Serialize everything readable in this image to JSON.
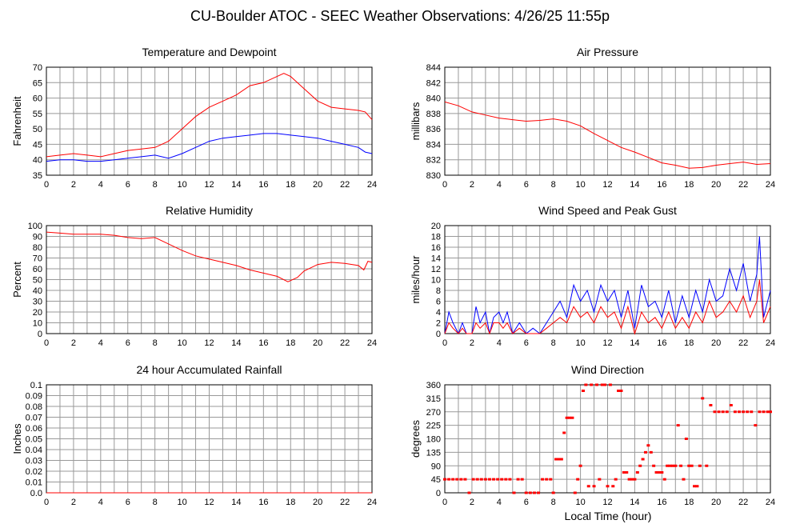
{
  "page": {
    "title": "CU-Boulder ATOC - SEEC Weather Observations: 4/26/25 11:55p",
    "x_axis_label": "Local Time (hour)"
  },
  "colors": {
    "red": "#ff0000",
    "blue": "#0000ff",
    "grid": "#999999"
  },
  "chart_data": [
    {
      "id": "temp",
      "type": "line",
      "title": "Temperature and Dewpoint",
      "xlabel": "",
      "ylabel": "Fahrenheit",
      "xlim": [
        0,
        24
      ],
      "ylim": [
        35,
        70
      ],
      "yticks": [
        35,
        40,
        45,
        50,
        55,
        60,
        65,
        70
      ],
      "xticks": [
        0,
        2,
        4,
        6,
        8,
        10,
        12,
        14,
        16,
        18,
        20,
        22,
        24
      ],
      "series": [
        {
          "color": "#ff0000",
          "x": [
            0,
            1,
            2,
            3,
            4,
            5,
            6,
            7,
            8,
            9,
            10,
            11,
            12,
            13,
            14,
            15,
            16,
            17,
            17.5,
            18,
            18.5,
            19,
            20,
            21,
            22,
            23,
            23.5,
            24
          ],
          "y": [
            41,
            41.5,
            42,
            41.5,
            41,
            42,
            43,
            43.5,
            44,
            46,
            50,
            54,
            57,
            59,
            61,
            64,
            65,
            67,
            68,
            67,
            65,
            63,
            59,
            57,
            56.5,
            56,
            55.5,
            53
          ]
        },
        {
          "color": "#0000ff",
          "x": [
            0,
            1,
            2,
            3,
            4,
            5,
            6,
            7,
            8,
            9,
            10,
            11,
            12,
            13,
            14,
            15,
            16,
            17,
            18,
            19,
            20,
            21,
            22,
            23,
            23.5,
            24
          ],
          "y": [
            39.5,
            40,
            40,
            39.5,
            39.5,
            40,
            40.5,
            41,
            41.5,
            40.5,
            42,
            44,
            46,
            47,
            47.5,
            48,
            48.5,
            48.5,
            48,
            47.5,
            47,
            46,
            45,
            44,
            42.5,
            42
          ]
        }
      ]
    },
    {
      "id": "pressure",
      "type": "line",
      "title": "Air Pressure",
      "xlabel": "",
      "ylabel": "millibars",
      "xlim": [
        0,
        24
      ],
      "ylim": [
        830,
        844
      ],
      "yticks": [
        830,
        832,
        834,
        836,
        838,
        840,
        842,
        844
      ],
      "xticks": [
        0,
        2,
        4,
        6,
        8,
        10,
        12,
        14,
        16,
        18,
        20,
        22,
        24
      ],
      "series": [
        {
          "color": "#ff0000",
          "x": [
            0,
            1,
            2,
            3,
            4,
            5,
            6,
            7,
            8,
            9,
            10,
            11,
            12,
            13,
            14,
            15,
            16,
            17,
            18,
            19,
            20,
            21,
            22,
            23,
            24
          ],
          "y": [
            839.5,
            839,
            838.2,
            837.8,
            837.4,
            837.2,
            837,
            837.1,
            837.3,
            837,
            836.4,
            835.4,
            834.5,
            833.6,
            833,
            832.3,
            831.6,
            831.3,
            830.9,
            831,
            831.3,
            831.5,
            831.7,
            831.4,
            831.5
          ]
        }
      ]
    },
    {
      "id": "humidity",
      "type": "line",
      "title": "Relative Humidity",
      "xlabel": "",
      "ylabel": "Percent",
      "xlim": [
        0,
        24
      ],
      "ylim": [
        0,
        100
      ],
      "yticks": [
        0,
        10,
        20,
        30,
        40,
        50,
        60,
        70,
        80,
        90,
        100
      ],
      "xticks": [
        0,
        2,
        4,
        6,
        8,
        10,
        12,
        14,
        16,
        18,
        20,
        22,
        24
      ],
      "series": [
        {
          "color": "#ff0000",
          "x": [
            0,
            1,
            2,
            3,
            4,
            5,
            6,
            7,
            8,
            9,
            10,
            11,
            12,
            13,
            14,
            15,
            16,
            17,
            17.8,
            18.5,
            19,
            20,
            21,
            22,
            23,
            23.4,
            23.7,
            24
          ],
          "y": [
            94,
            93,
            92,
            92,
            92,
            91,
            89,
            88,
            89,
            83,
            77,
            72,
            69,
            66,
            63,
            59,
            56,
            53,
            48,
            52,
            58,
            64,
            66,
            65,
            63,
            59,
            67,
            66
          ]
        }
      ]
    },
    {
      "id": "wind",
      "type": "line",
      "title": "Wind Speed and Peak Gust",
      "xlabel": "",
      "ylabel": "miles/hour",
      "xlim": [
        0,
        24
      ],
      "ylim": [
        0,
        20
      ],
      "yticks": [
        0,
        2,
        4,
        6,
        8,
        10,
        12,
        14,
        16,
        18,
        20
      ],
      "xticks": [
        0,
        2,
        4,
        6,
        8,
        10,
        12,
        14,
        16,
        18,
        20,
        22,
        24
      ],
      "series": [
        {
          "color": "#0000ff",
          "x": [
            0,
            0.3,
            0.6,
            1,
            1.3,
            1.6,
            2,
            2.3,
            2.6,
            3,
            3.3,
            3.6,
            4,
            4.3,
            4.6,
            5,
            5.5,
            6,
            6.5,
            7,
            7.5,
            8,
            8.5,
            9,
            9.5,
            10,
            10.5,
            11,
            11.5,
            12,
            12.5,
            13,
            13.5,
            14,
            14.5,
            15,
            15.5,
            16,
            16.5,
            17,
            17.5,
            18,
            18.5,
            19,
            19.5,
            20,
            20.5,
            21,
            21.5,
            22,
            22.5,
            23,
            23.2,
            23.5,
            24
          ],
          "y": [
            0,
            4,
            2,
            0,
            2,
            0,
            0,
            5,
            2,
            4,
            0,
            3,
            4,
            2,
            4,
            0,
            2,
            0,
            1,
            0,
            2,
            4,
            6,
            3,
            9,
            6,
            8,
            4,
            9,
            6,
            8,
            3,
            8,
            1,
            9,
            5,
            6,
            3,
            8,
            2,
            7,
            3,
            8,
            4,
            10,
            6,
            7,
            12,
            8,
            13,
            6,
            11,
            18,
            3,
            8
          ]
        },
        {
          "color": "#ff0000",
          "x": [
            0,
            0.3,
            0.6,
            1,
            1.3,
            1.6,
            2,
            2.3,
            2.6,
            3,
            3.3,
            3.6,
            4,
            4.3,
            4.6,
            5,
            5.5,
            6,
            6.5,
            7,
            7.5,
            8,
            8.5,
            9,
            9.5,
            10,
            10.5,
            11,
            11.5,
            12,
            12.5,
            13,
            13.5,
            14,
            14.5,
            15,
            15.5,
            16,
            16.5,
            17,
            17.5,
            18,
            18.5,
            19,
            19.5,
            20,
            20.5,
            21,
            21.5,
            22,
            22.5,
            23,
            23.2,
            23.5,
            24
          ],
          "y": [
            0,
            2,
            1,
            0,
            1,
            0,
            0,
            2,
            1,
            2,
            0,
            2,
            2,
            1,
            2,
            0,
            1,
            0,
            0,
            0,
            1,
            2,
            3,
            2,
            5,
            3,
            4,
            2,
            5,
            3,
            4,
            1,
            5,
            0,
            4,
            2,
            3,
            1,
            4,
            1,
            3,
            1,
            4,
            2,
            6,
            3,
            4,
            6,
            4,
            7,
            3,
            6,
            10,
            2,
            5
          ]
        }
      ]
    },
    {
      "id": "rain",
      "type": "line",
      "title": "24 hour Accumulated Rainfall",
      "xlabel": "",
      "ylabel": "Inches",
      "xlim": [
        0,
        24
      ],
      "ylim": [
        0,
        0.1
      ],
      "yticks": [
        0.0,
        0.01,
        0.02,
        0.03,
        0.04,
        0.05,
        0.06,
        0.07,
        0.08,
        0.09,
        0.1
      ],
      "ytick_labels": [
        "0.0",
        "0.01",
        "0.02",
        "0.03",
        "0.04",
        "0.05",
        "0.06",
        "0.07",
        "0.08",
        "0.09",
        "0.1"
      ],
      "xticks": [
        0,
        2,
        4,
        6,
        8,
        10,
        12,
        14,
        16,
        18,
        20,
        22,
        24
      ],
      "series": [
        {
          "color": "#ff0000",
          "x": [
            0,
            24
          ],
          "y": [
            0,
            0
          ]
        }
      ]
    },
    {
      "id": "direction",
      "type": "scatter",
      "title": "Wind Direction",
      "xlabel": "Local Time (hour)",
      "ylabel": "degrees",
      "xlim": [
        0,
        24
      ],
      "ylim": [
        0,
        360
      ],
      "yticks": [
        0,
        45,
        90,
        135,
        180,
        225,
        270,
        315,
        360
      ],
      "xticks": [
        0,
        2,
        4,
        6,
        8,
        10,
        12,
        14,
        16,
        18,
        20,
        22,
        24
      ],
      "series": [
        {
          "color": "#ff0000",
          "x": [
            0,
            0.3,
            0.6,
            0.9,
            1.2,
            1.5,
            1.8,
            2.1,
            2.4,
            2.7,
            3.0,
            3.3,
            3.6,
            3.9,
            4.2,
            4.5,
            4.8,
            5.1,
            5.4,
            5.7,
            6.0,
            6.3,
            6.6,
            6.9,
            7.2,
            7.5,
            7.8,
            8.0,
            8.2,
            8.4,
            8.6,
            8.8,
            9.0,
            9.2,
            9.4,
            9.6,
            9.8,
            10.0,
            10.2,
            10.4,
            10.6,
            10.8,
            11.0,
            11.2,
            11.4,
            11.6,
            11.8,
            12.0,
            12.2,
            12.4,
            12.6,
            12.8,
            13.0,
            13.2,
            13.4,
            13.6,
            13.8,
            14.0,
            14.2,
            14.4,
            14.6,
            14.8,
            15.0,
            15.2,
            15.4,
            15.6,
            15.8,
            16.0,
            16.2,
            16.4,
            16.6,
            16.8,
            17.0,
            17.2,
            17.4,
            17.6,
            17.8,
            18.0,
            18.2,
            18.4,
            18.6,
            18.8,
            19.0,
            19.3,
            19.6,
            19.9,
            20.2,
            20.5,
            20.8,
            21.1,
            21.4,
            21.7,
            22.0,
            22.3,
            22.6,
            22.9,
            23.2,
            23.5,
            23.8,
            24.0
          ],
          "y": [
            45,
            45,
            45,
            45,
            45,
            45,
            0,
            45,
            45,
            45,
            45,
            45,
            45,
            45,
            45,
            45,
            45,
            0,
            45,
            45,
            0,
            0,
            0,
            0,
            45,
            45,
            45,
            0,
            112,
            112,
            112,
            200,
            250,
            250,
            250,
            0,
            45,
            90,
            340,
            360,
            22,
            360,
            22,
            360,
            45,
            360,
            360,
            22,
            360,
            22,
            45,
            340,
            340,
            68,
            68,
            45,
            45,
            45,
            68,
            90,
            112,
            135,
            158,
            135,
            90,
            68,
            68,
            68,
            45,
            90,
            90,
            90,
            90,
            225,
            90,
            45,
            180,
            90,
            90,
            22,
            22,
            90,
            315,
            90,
            292,
            270,
            270,
            270,
            270,
            292,
            270,
            270,
            270,
            270,
            270,
            225,
            270,
            270,
            270,
            270
          ]
        }
      ]
    }
  ]
}
